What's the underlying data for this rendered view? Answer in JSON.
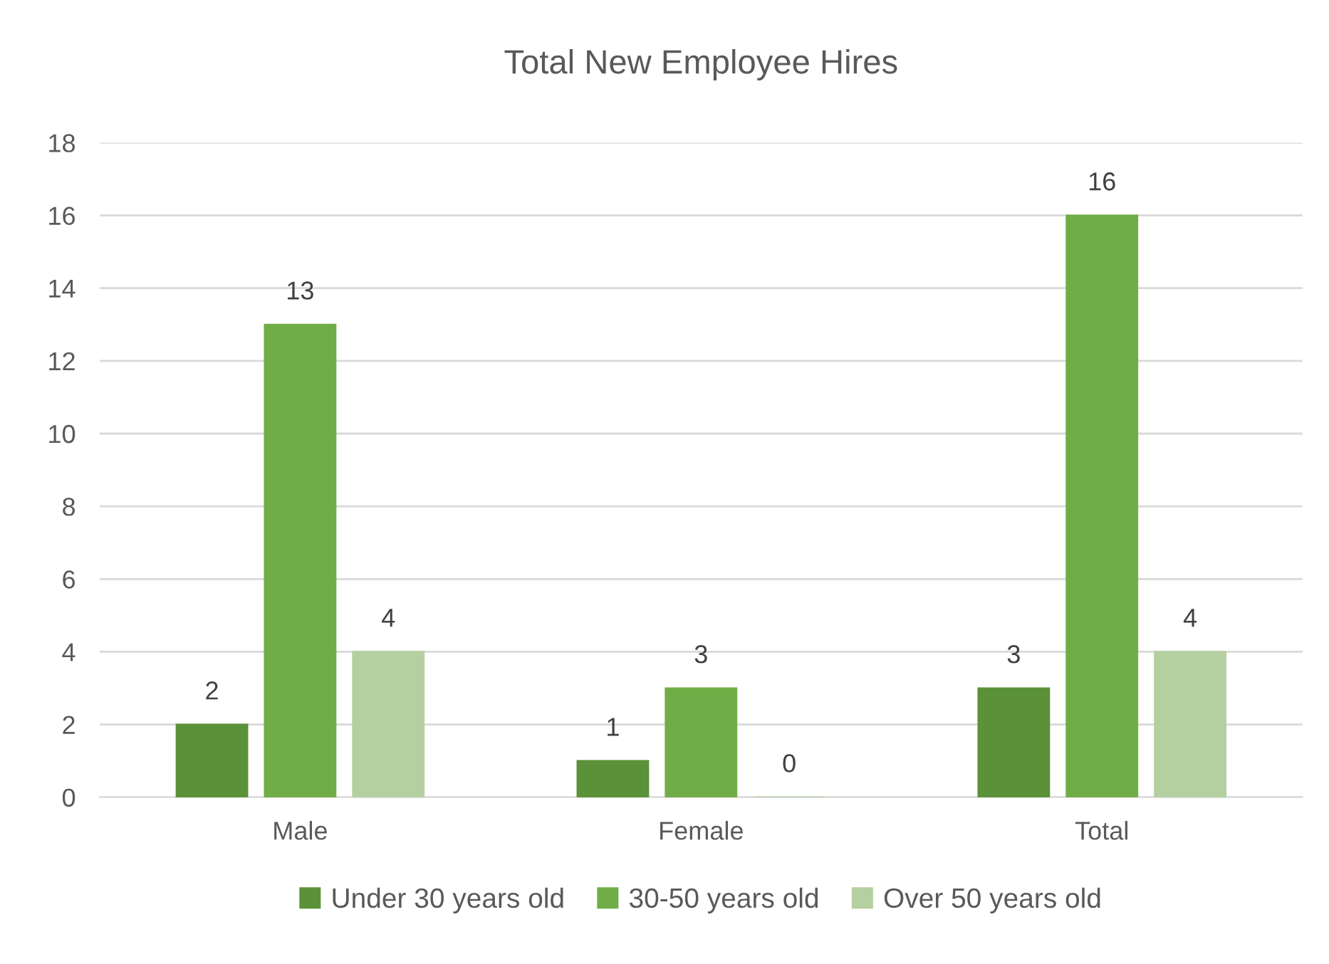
{
  "chart_data": {
    "type": "bar",
    "title": "Total New Employee Hires",
    "categories": [
      "Male",
      "Female",
      "Total"
    ],
    "series": [
      {
        "name": "Under 30 years old",
        "color": "#5b9138",
        "values": [
          2,
          1,
          3
        ]
      },
      {
        "name": "30-50 years old",
        "color": "#70ad47",
        "values": [
          13,
          3,
          16
        ]
      },
      {
        "name": "Over 50 years old",
        "color": "#b5d0a0",
        "values": [
          4,
          0,
          4
        ]
      }
    ],
    "ylim": [
      0,
      18
    ],
    "yticks": [
      0,
      2,
      4,
      6,
      8,
      10,
      12,
      14,
      16,
      18
    ],
    "grid": "y",
    "legend": "bottom",
    "data_labels": true
  }
}
